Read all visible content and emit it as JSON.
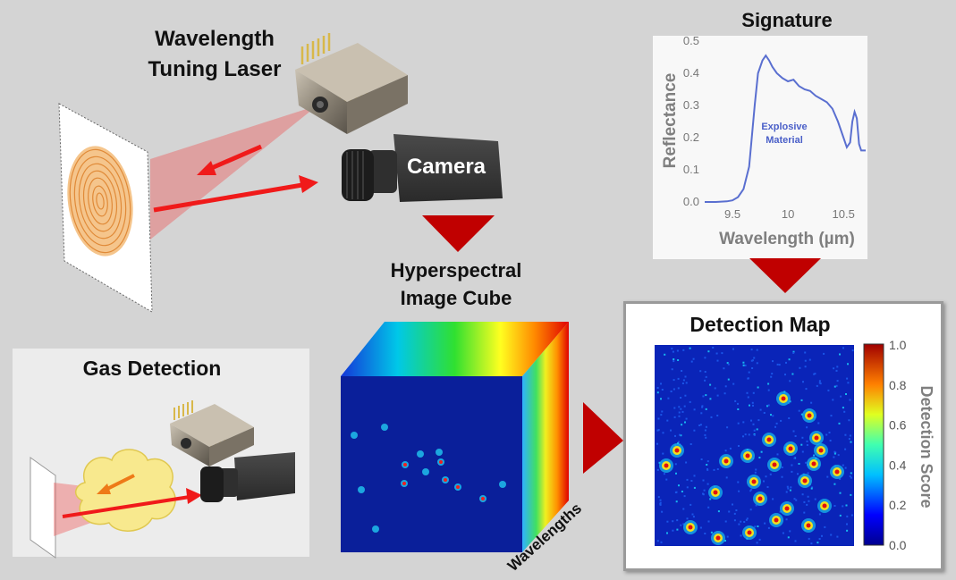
{
  "labels": {
    "laser_line1": "Wavelength",
    "laser_line2": "Tuning Laser",
    "camera": "Camera",
    "signature": "Signature",
    "cube_line1": "Hyperspectral",
    "cube_line2": "Image Cube",
    "wavelengths": "Wavelengths",
    "detection_map": "Detection Map",
    "gas_detection": "Gas Detection"
  },
  "signature_plot": {
    "annotation_line1": "Explosive",
    "annotation_line2": "Material",
    "ylabel": "Reflectance",
    "xlabel": "Wavelength (µm)",
    "xticks": [
      "9.5",
      "10",
      "10.5"
    ],
    "yticks": [
      "0.0",
      "0.1",
      "0.2",
      "0.3",
      "0.4",
      "0.5"
    ],
    "xlim": [
      9.25,
      10.7
    ],
    "ylim": [
      0.0,
      0.5
    ],
    "line_color": "#5a6fd0",
    "x": [
      9.25,
      9.35,
      9.45,
      9.5,
      9.55,
      9.6,
      9.65,
      9.7,
      9.73,
      9.77,
      9.8,
      9.83,
      9.86,
      9.9,
      9.95,
      10.0,
      10.05,
      10.1,
      10.15,
      10.2,
      10.25,
      10.3,
      10.35,
      10.4,
      10.45,
      10.5,
      10.53,
      10.56,
      10.58,
      10.6,
      10.62,
      10.64,
      10.66,
      10.7
    ],
    "y": [
      0.0,
      0.0,
      0.002,
      0.005,
      0.015,
      0.04,
      0.11,
      0.3,
      0.4,
      0.44,
      0.455,
      0.44,
      0.42,
      0.4,
      0.385,
      0.375,
      0.38,
      0.36,
      0.35,
      0.345,
      0.33,
      0.32,
      0.31,
      0.29,
      0.25,
      0.2,
      0.17,
      0.185,
      0.25,
      0.28,
      0.26,
      0.18,
      0.16,
      0.16
    ]
  },
  "colorbar": {
    "title": "Detection Score",
    "ticks": [
      "1.0",
      "0.8",
      "0.6",
      "0.4",
      "0.2",
      "0.0"
    ]
  },
  "colors": {
    "arrow_red": "#c00000",
    "beam_red": "#f22020",
    "fingerprint": "#e8a35a",
    "gas_cloud": "#f7e88a"
  },
  "icons": [
    "laser-module-icon",
    "camera-icon",
    "fingerprint-icon",
    "gas-cloud-icon"
  ]
}
